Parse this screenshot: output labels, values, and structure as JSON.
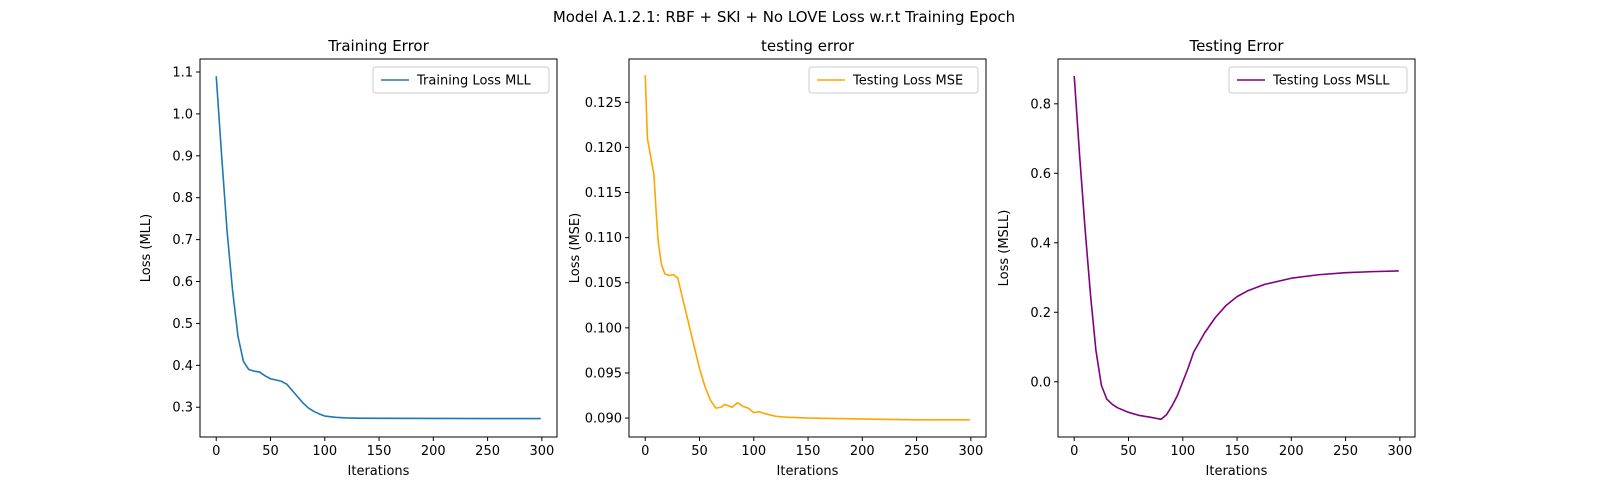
{
  "figure": {
    "title": "Model A.1.2.1: RBF + SKI + No LOVE Loss w.r.t Training Epoch"
  },
  "chart_data": [
    {
      "type": "line",
      "title": "Training Error",
      "xlabel": "Iterations",
      "ylabel": "Loss (MLL)",
      "xlim": [
        -14.95,
        313.95
      ],
      "ylim": [
        0.229,
        1.131
      ],
      "xticks": [
        0,
        50,
        100,
        150,
        200,
        250,
        300
      ],
      "yticks": [
        0.3,
        0.4,
        0.5,
        0.6,
        0.7,
        0.8,
        0.9,
        1.0,
        1.1
      ],
      "ytick_labels": [
        "0.3",
        "0.4",
        "0.5",
        "0.6",
        "0.7",
        "0.8",
        "0.9",
        "1.0",
        "1.1"
      ],
      "grid": false,
      "legend": "top-right",
      "series": [
        {
          "name": "Training Loss MLL",
          "color": "#1f77b4",
          "points": [
            [
              0,
              1.09
            ],
            [
              5,
              0.9
            ],
            [
              10,
              0.72
            ],
            [
              15,
              0.58
            ],
            [
              20,
              0.47
            ],
            [
              25,
              0.41
            ],
            [
              30,
              0.39
            ],
            [
              35,
              0.386
            ],
            [
              40,
              0.384
            ],
            [
              45,
              0.375
            ],
            [
              50,
              0.368
            ],
            [
              55,
              0.365
            ],
            [
              60,
              0.362
            ],
            [
              65,
              0.355
            ],
            [
              70,
              0.34
            ],
            [
              75,
              0.325
            ],
            [
              80,
              0.31
            ],
            [
              85,
              0.298
            ],
            [
              90,
              0.29
            ],
            [
              95,
              0.284
            ],
            [
              100,
              0.279
            ],
            [
              110,
              0.276
            ],
            [
              120,
              0.2745
            ],
            [
              130,
              0.274
            ],
            [
              150,
              0.2735
            ],
            [
              200,
              0.2732
            ],
            [
              250,
              0.273
            ],
            [
              299,
              0.273
            ]
          ]
        }
      ]
    },
    {
      "type": "line",
      "title": "testing error",
      "xlabel": "Iterations",
      "ylabel": "Loss (MSE)",
      "xlim": [
        -14.95,
        313.95
      ],
      "ylim": [
        0.0879,
        0.1298
      ],
      "xticks": [
        0,
        50,
        100,
        150,
        200,
        250,
        300
      ],
      "yticks": [
        0.09,
        0.095,
        0.1,
        0.105,
        0.11,
        0.115,
        0.12,
        0.125
      ],
      "ytick_labels": [
        "0.090",
        "0.095",
        "0.100",
        "0.105",
        "0.110",
        "0.115",
        "0.120",
        "0.125"
      ],
      "grid": false,
      "legend": "top-right",
      "series": [
        {
          "name": "Testing Loss MSE",
          "color": "#ffa500",
          "points": [
            [
              0,
              0.128
            ],
            [
              2,
              0.121
            ],
            [
              5,
              0.119
            ],
            [
              8,
              0.117
            ],
            [
              10,
              0.113
            ],
            [
              12,
              0.1095
            ],
            [
              15,
              0.107
            ],
            [
              18,
              0.106
            ],
            [
              22,
              0.1058
            ],
            [
              26,
              0.1059
            ],
            [
              30,
              0.1055
            ],
            [
              33,
              0.104
            ],
            [
              36,
              0.1025
            ],
            [
              40,
              0.1005
            ],
            [
              45,
              0.098
            ],
            [
              50,
              0.0955
            ],
            [
              55,
              0.0935
            ],
            [
              60,
              0.092
            ],
            [
              65,
              0.0911
            ],
            [
              70,
              0.0912
            ],
            [
              73,
              0.0915
            ],
            [
              76,
              0.0914
            ],
            [
              80,
              0.0912
            ],
            [
              85,
              0.0917
            ],
            [
              90,
              0.0913
            ],
            [
              95,
              0.0911
            ],
            [
              100,
              0.0906
            ],
            [
              105,
              0.0907
            ],
            [
              110,
              0.0905
            ],
            [
              120,
              0.0902
            ],
            [
              130,
              0.0901
            ],
            [
              150,
              0.09
            ],
            [
              200,
              0.0899
            ],
            [
              250,
              0.0898
            ],
            [
              299,
              0.0898
            ]
          ]
        }
      ]
    },
    {
      "type": "line",
      "title": "Testing Error",
      "xlabel": "Iterations",
      "ylabel": "Loss (MSLL)",
      "xlim": [
        -14.95,
        313.95
      ],
      "ylim": [
        -0.159,
        0.929
      ],
      "xticks": [
        0,
        50,
        100,
        150,
        200,
        250,
        300
      ],
      "yticks": [
        0.0,
        0.2,
        0.4,
        0.6,
        0.8
      ],
      "ytick_labels": [
        "0.0",
        "0.2",
        "0.4",
        "0.6",
        "0.8"
      ],
      "grid": false,
      "legend": "top-right",
      "series": [
        {
          "name": "Testing Loss MSLL",
          "color": "#800080",
          "points": [
            [
              0,
              0.88
            ],
            [
              5,
              0.65
            ],
            [
              10,
              0.44
            ],
            [
              15,
              0.25
            ],
            [
              20,
              0.09
            ],
            [
              25,
              -0.01
            ],
            [
              30,
              -0.05
            ],
            [
              35,
              -0.065
            ],
            [
              40,
              -0.075
            ],
            [
              50,
              -0.088
            ],
            [
              60,
              -0.097
            ],
            [
              70,
              -0.102
            ],
            [
              75,
              -0.105
            ],
            [
              80,
              -0.108
            ],
            [
              85,
              -0.095
            ],
            [
              90,
              -0.07
            ],
            [
              95,
              -0.04
            ],
            [
              100,
              0.0
            ],
            [
              105,
              0.04
            ],
            [
              110,
              0.085
            ],
            [
              120,
              0.14
            ],
            [
              130,
              0.185
            ],
            [
              140,
              0.22
            ],
            [
              150,
              0.245
            ],
            [
              160,
              0.262
            ],
            [
              175,
              0.28
            ],
            [
              200,
              0.298
            ],
            [
              225,
              0.308
            ],
            [
              250,
              0.314
            ],
            [
              275,
              0.317
            ],
            [
              299,
              0.319
            ]
          ]
        }
      ]
    }
  ]
}
